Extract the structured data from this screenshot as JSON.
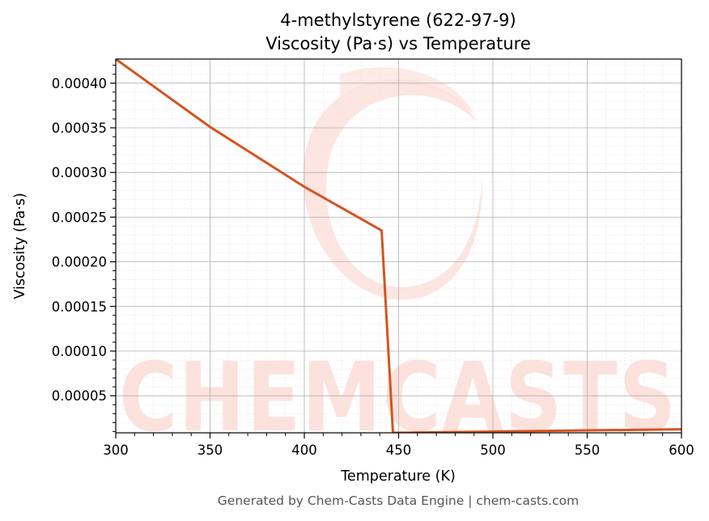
{
  "chart_data": {
    "type": "line",
    "title_line1": "4-methylstyrene (622-97-9)",
    "title_line2": "Viscosity (Pa·s) vs Temperature",
    "xlabel": "Temperature (K)",
    "ylabel": "Viscosity (Pa·s)",
    "xlim": [
      300,
      600
    ],
    "ylim": [
      8.5e-06,
      0.000427
    ],
    "x_ticks": [
      300,
      350,
      400,
      450,
      500,
      550,
      600
    ],
    "x_tick_labels": [
      "300",
      "350",
      "400",
      "450",
      "500",
      "550",
      "600"
    ],
    "y_ticks": [
      5e-05,
      0.0001,
      0.00015,
      0.0002,
      0.00025,
      0.0003,
      0.00035,
      0.0004
    ],
    "y_tick_labels": [
      "0.00005",
      "0.00010",
      "0.00015",
      "0.00020",
      "0.00025",
      "0.00030",
      "0.00035",
      "0.00040"
    ],
    "grid": true,
    "series": [
      {
        "color": "#d4541f",
        "x": [
          300,
          350,
          400,
          441,
          447,
          600
        ],
        "y": [
          0.000427,
          0.000351,
          0.000284,
          0.000235,
          8.5e-06,
          1.25e-05
        ]
      }
    ]
  },
  "watermark": {
    "text": "CHEMCASTS",
    "color": "#fde1dc"
  },
  "footer": "Generated by Chem-Casts Data Engine | chem-casts.com"
}
